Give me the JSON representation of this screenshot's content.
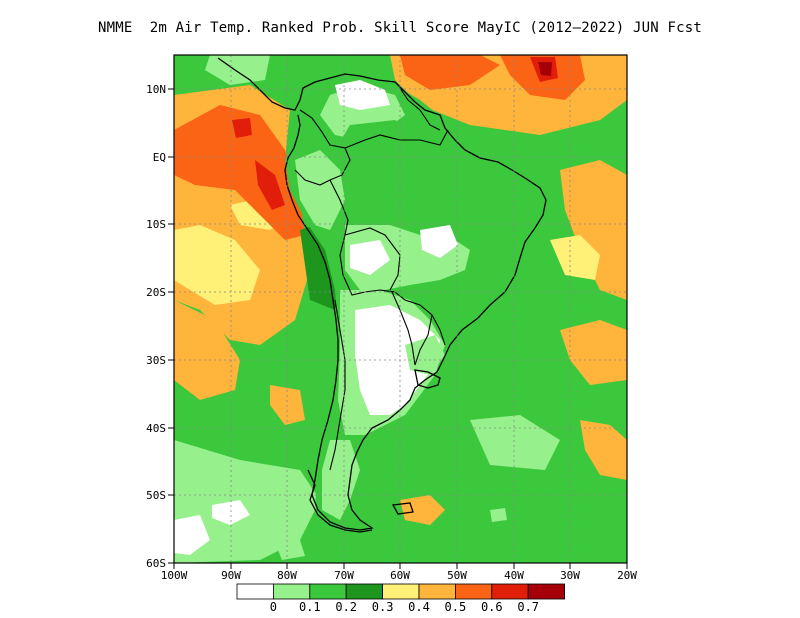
{
  "title": "NMME  2m Air Temp. Ranked Prob. Skill Score MayIC (2012–2022) JUN Fcst",
  "map": {
    "lon_range": [
      -100,
      -20
    ],
    "lat_range": [
      -60,
      13
    ],
    "lat_ticks": [
      {
        "value": 10,
        "label": "10N"
      },
      {
        "value": 0,
        "label": "EQ"
      },
      {
        "value": -10,
        "label": "10S"
      },
      {
        "value": -20,
        "label": "20S"
      },
      {
        "value": -30,
        "label": "30S"
      },
      {
        "value": -40,
        "label": "40S"
      },
      {
        "value": -50,
        "label": "50S"
      },
      {
        "value": -60,
        "label": "60S"
      }
    ],
    "lon_ticks": [
      {
        "value": -100,
        "label": "100W"
      },
      {
        "value": -90,
        "label": "90W"
      },
      {
        "value": -80,
        "label": "80W"
      },
      {
        "value": -70,
        "label": "70W"
      },
      {
        "value": -60,
        "label": "60W"
      },
      {
        "value": -50,
        "label": "50W"
      },
      {
        "value": -40,
        "label": "40W"
      },
      {
        "value": -30,
        "label": "30W"
      },
      {
        "value": -20,
        "label": "20W"
      }
    ],
    "gridlines": "dotted"
  },
  "colorbar": {
    "colors": [
      "#ffffff",
      "#96f08c",
      "#3cc83c",
      "#1e961e",
      "#fff078",
      "#ffb43c",
      "#fa6414",
      "#e11e0a",
      "#a5000a"
    ],
    "labels": [
      "0",
      "0.1",
      "0.2",
      "0.3",
      "0.4",
      "0.5",
      "0.6",
      "0.7"
    ]
  }
}
